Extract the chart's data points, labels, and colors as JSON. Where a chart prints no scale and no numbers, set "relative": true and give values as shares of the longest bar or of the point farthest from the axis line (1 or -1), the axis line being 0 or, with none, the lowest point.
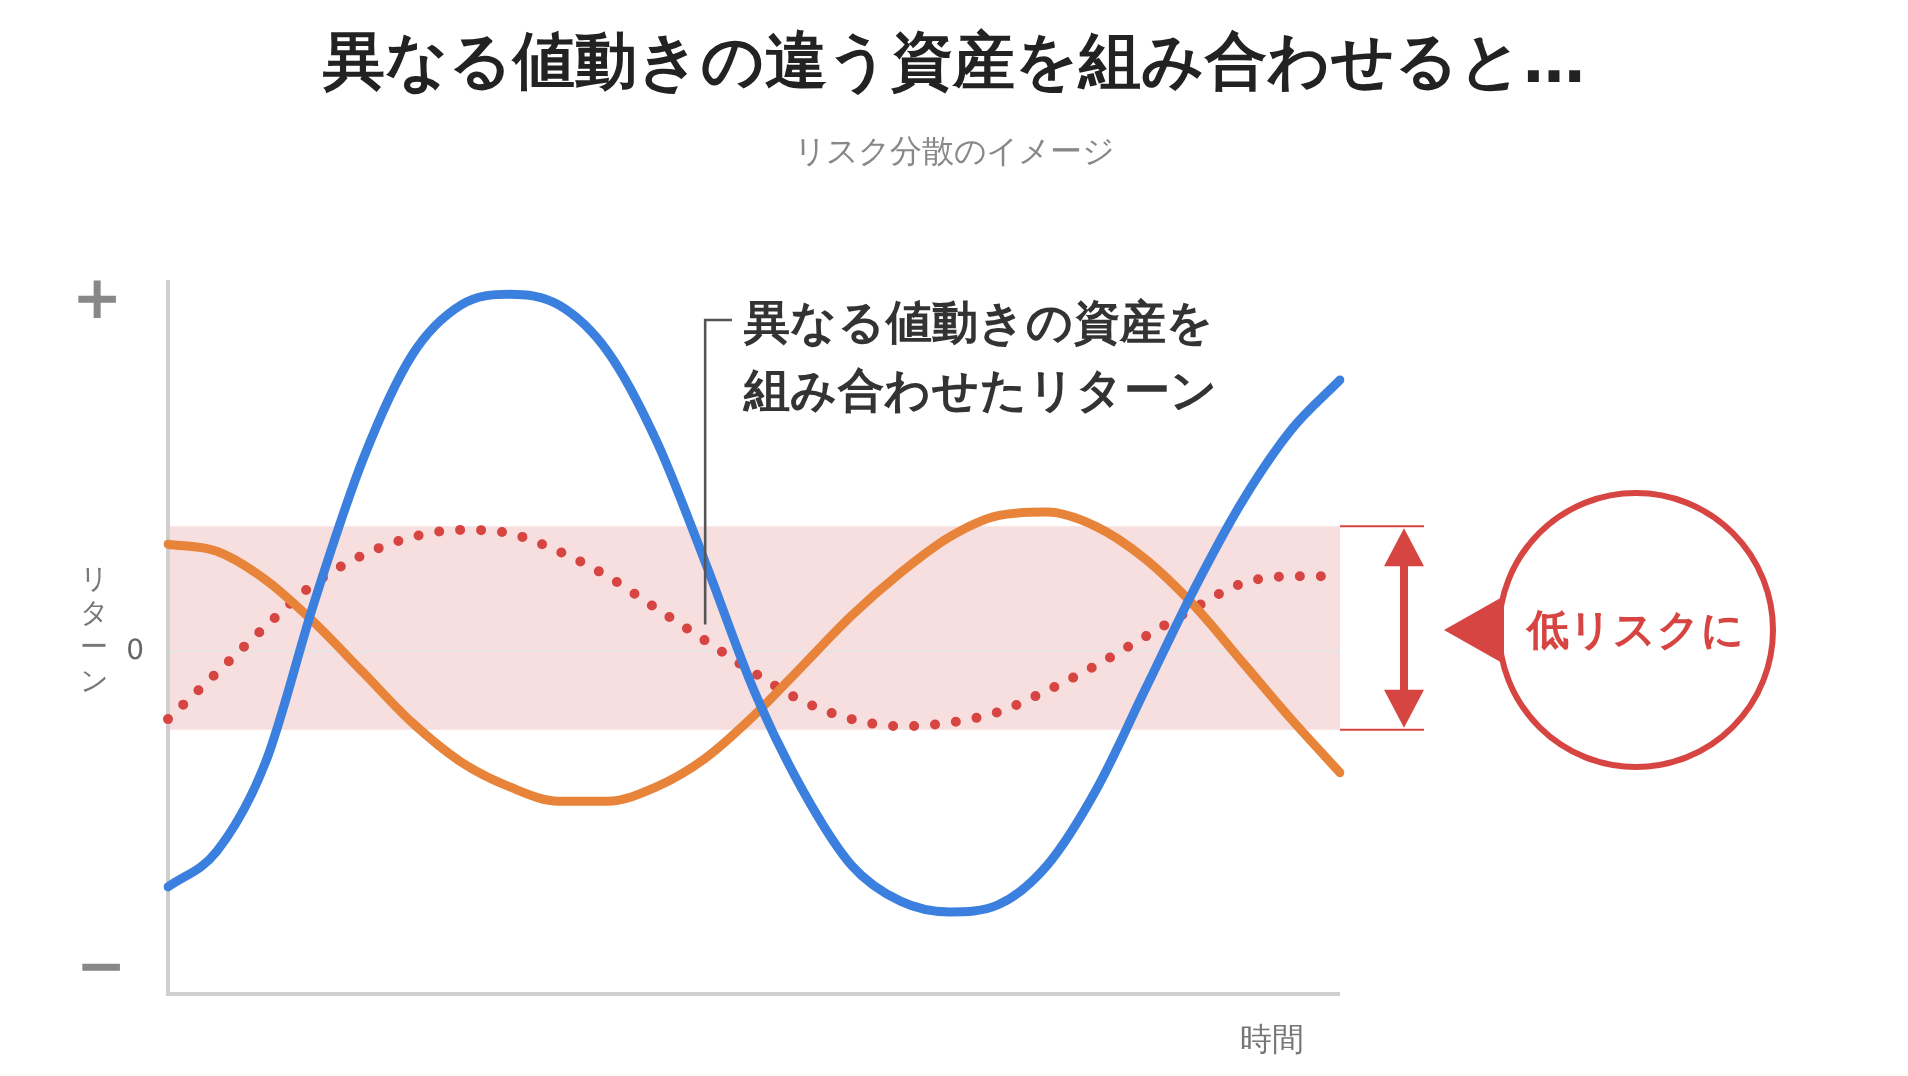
{
  "chart_data": {
    "type": "line",
    "title": "異なる値動きの違う資産を組み合わせると…",
    "subtitle": "リスク分散のイメージ",
    "xlabel": "時間",
    "ylabel": "リターン",
    "annotations": [
      "+",
      "−",
      "低リスクに"
    ],
    "categories": [
      null,
      null,
      null,
      null,
      null,
      null,
      null,
      null,
      null,
      null,
      null,
      null,
      null,
      null,
      null,
      null,
      null,
      null,
      null,
      null,
      null,
      null,
      null,
      null,
      null
    ],
    "relative": true,
    "legend": false,
    "marker": "none",
    "line_style": "solid",
    "series": [
      {
        "color": "#3b80de",
        "values": [
          -0.66,
          -0.56,
          -0.31,
          0.14,
          0.54,
          0.83,
          0.97,
          1.0,
          0.97,
          0.84,
          0.59,
          0.25,
          -0.11,
          -0.39,
          -0.6,
          -0.7,
          -0.73,
          -0.71,
          -0.6,
          -0.39,
          -0.11,
          0.17,
          0.42,
          0.62,
          0.76
        ]
      },
      {
        "color": "#e8833a",
        "values": [
          0.3,
          0.28,
          0.2,
          0.08,
          -0.06,
          -0.2,
          -0.31,
          -0.38,
          -0.42,
          -0.42,
          -0.38,
          -0.3,
          -0.18,
          -0.04,
          0.1,
          0.22,
          0.32,
          0.38,
          0.39,
          0.35,
          0.26,
          0.13,
          -0.03,
          -0.19,
          -0.34
        ]
      },
      {
        "name": "異なる値動きの資産を組み合わせたリターン",
        "color": "#d64541",
        "line_style": "dotted",
        "values": [
          -0.19,
          -0.06,
          0.07,
          0.19,
          0.27,
          0.32,
          0.34,
          0.33,
          0.28,
          0.21,
          0.12,
          0.03,
          -0.06,
          -0.14,
          -0.19,
          -0.21,
          -0.2,
          -0.17,
          -0.11,
          -0.04,
          0.04,
          0.12,
          0.19,
          0.21,
          0.21
        ]
      }
    ],
    "bands": [
      {
        "axis": "y",
        "from": -0.22,
        "to": 0.35,
        "color": "#f7dfdf"
      }
    ],
    "ref_lines": [
      {
        "axis": "y",
        "value": 0,
        "label": "0",
        "color": "#e4e4e4"
      }
    ]
  }
}
